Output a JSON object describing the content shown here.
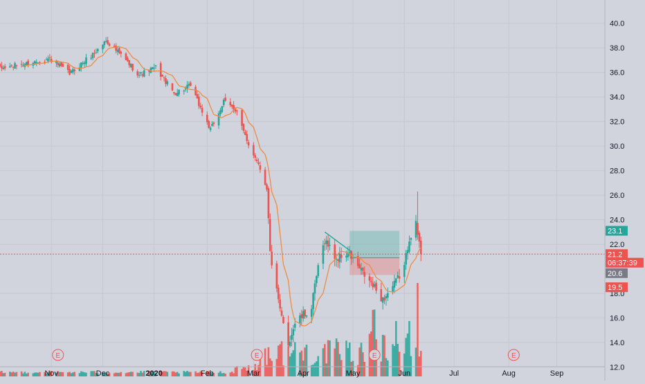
{
  "chart_data": {
    "type": "candlestick",
    "title": "",
    "y_axis": {
      "ticks": [
        "40.0",
        "38.0",
        "36.0",
        "34.0",
        "32.0",
        "30.0",
        "28.0",
        "26.0",
        "24.0",
        "22.0",
        "18.0",
        "16.0",
        "14.0",
        "12.0"
      ],
      "range": [
        10.9,
        41.9
      ],
      "position": "right"
    },
    "x_axis": {
      "ticks": [
        "Nov",
        "Dec",
        "2020",
        "Feb",
        "Mar",
        "Apr",
        "May",
        "Jun",
        "Jul",
        "Aug",
        "Sep"
      ],
      "range": [
        "2019-10-01",
        "2020-09-30"
      ]
    },
    "tick_dates": [
      "2019-11-01",
      "2019-12-02",
      "2020-01-02",
      "2020-02-03",
      "2020-03-02",
      "2020-04-01",
      "2020-05-01",
      "2020-06-01",
      "2020-07-01",
      "2020-08-03",
      "2020-09-01"
    ],
    "price_labels": [
      {
        "label": "23.1",
        "value": 23.1,
        "color": "#26a69a"
      },
      {
        "label": "21.2",
        "value": 21.2,
        "color": "#ef5350"
      },
      {
        "label": "06:37:39",
        "value": 20.5,
        "color": "#ef5350"
      },
      {
        "label": "20.6",
        "value": 19.65,
        "color": "#787b86"
      },
      {
        "label": "19.5",
        "value": 18.5,
        "color": "#ef5350"
      }
    ],
    "current_price_line": 21.2,
    "earnings_markers": {
      "label": "E",
      "dates": [
        "2019-11-05",
        "2020-03-04",
        "2020-05-14",
        "2020-08-06"
      ]
    },
    "anchors": [
      {
        "date": "2019-10-01",
        "close": 36.3
      },
      {
        "date": "2019-10-31",
        "close": 37.1
      },
      {
        "date": "2019-11-12",
        "close": 35.9
      },
      {
        "date": "2019-11-27",
        "close": 37.6
      },
      {
        "date": "2019-12-04",
        "close": 38.6
      },
      {
        "date": "2019-12-13",
        "close": 37.4
      },
      {
        "date": "2019-12-24",
        "close": 35.8
      },
      {
        "date": "2020-01-03",
        "close": 36.4
      },
      {
        "date": "2020-01-14",
        "close": 34.3
      },
      {
        "date": "2020-01-24",
        "close": 34.9
      },
      {
        "date": "2020-02-05",
        "close": 31.3
      },
      {
        "date": "2020-02-13",
        "close": 33.6
      },
      {
        "date": "2020-02-21",
        "close": 32.9
      },
      {
        "date": "2020-02-27",
        "close": 30.3
      },
      {
        "date": "2020-03-04",
        "close": 28.9
      },
      {
        "date": "2020-03-10",
        "close": 26.7
      },
      {
        "date": "2020-03-12",
        "close": 21.3
      },
      {
        "date": "2020-03-18",
        "close": 16.5
      },
      {
        "date": "2020-03-23",
        "close": 13.9
      },
      {
        "date": "2020-03-27",
        "close": 15.6
      },
      {
        "date": "2020-04-06",
        "close": 16.8
      },
      {
        "date": "2020-04-09",
        "close": 19.4
      },
      {
        "date": "2020-04-14",
        "close": 22.4
      },
      {
        "date": "2020-04-21",
        "close": 20.8
      },
      {
        "date": "2020-04-28",
        "close": 21.3
      },
      {
        "date": "2020-05-06",
        "close": 19.8
      },
      {
        "date": "2020-05-13",
        "close": 18.6
      },
      {
        "date": "2020-05-19",
        "close": 17.5
      },
      {
        "date": "2020-05-26",
        "close": 18.7
      },
      {
        "date": "2020-06-01",
        "close": 20.2
      },
      {
        "date": "2020-06-04",
        "close": 22.6
      },
      {
        "date": "2020-06-08",
        "close": 23.6
      },
      {
        "date": "2020-06-11",
        "close": 21.2
      }
    ],
    "moving_average": {
      "period": 10,
      "color": "#ef8a43"
    },
    "volume": {
      "baseline_date_range": [
        "2019-10-01",
        "2020-06-11"
      ],
      "spike_dates": [
        "2020-05-13",
        "2020-05-14",
        "2020-06-09"
      ]
    },
    "annotations": {
      "trend_line": {
        "from": {
          "date": "2020-04-14",
          "price": 23.0
        },
        "to": {
          "date": "2020-04-30",
          "price": 21.4
        }
      },
      "long_position": {
        "start": "2020-04-29",
        "end": "2020-05-29",
        "entry": 20.9,
        "target": 23.1,
        "stop": 19.5
      }
    },
    "colors": {
      "up": "#26a69a",
      "down": "#ef5350",
      "background": "#d1d4dc",
      "grid": "#c5c8cf"
    }
  }
}
